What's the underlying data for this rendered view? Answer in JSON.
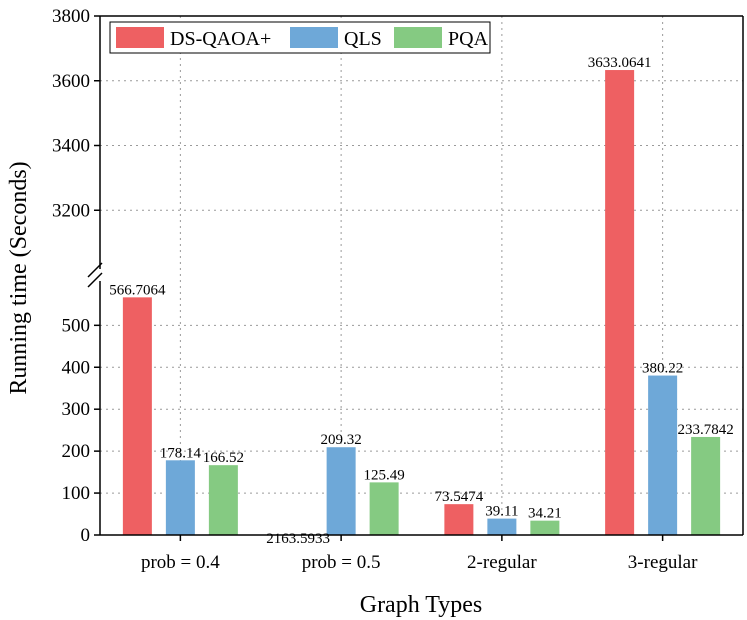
{
  "chart_data": {
    "type": "bar",
    "xlabel": "Graph Types",
    "ylabel": "Running time (Seconds)",
    "categories": [
      "prob = 0.4",
      "prob = 0.5",
      "2-regular",
      "3-regular"
    ],
    "series": [
      {
        "name": "DS-QAOA+",
        "color": "#ee6062",
        "values": [
          566.7064,
          2163.5933,
          73.5474,
          3633.0641
        ],
        "labels": [
          "566.7064",
          "2163.5933",
          "73.5474",
          "3633.0641"
        ]
      },
      {
        "name": "QLS",
        "color": "#6ea8d8",
        "values": [
          178.14,
          209.32,
          39.11,
          380.22
        ],
        "labels": [
          "178.14",
          "209.32",
          "39.11",
          "380.22"
        ]
      },
      {
        "name": "PQA",
        "color": "#85ca82",
        "values": [
          166.52,
          125.49,
          34.21,
          233.7842
        ],
        "labels": [
          "166.52",
          "125.49",
          "34.21",
          "233.7842"
        ]
      }
    ],
    "broken_axis": true,
    "lower_ylim": [
      0,
      620
    ],
    "upper_ylim": [
      3000,
      3800
    ],
    "lower_ticks": [
      0,
      100,
      200,
      300,
      400,
      500
    ],
    "upper_ticks": [
      3200,
      3400,
      3600,
      3800
    ],
    "grid": true,
    "legend_position": "top-left"
  }
}
